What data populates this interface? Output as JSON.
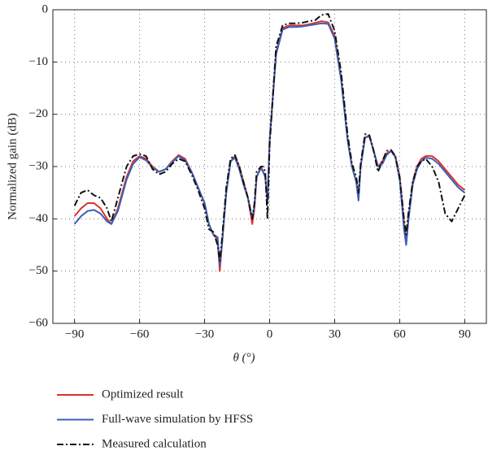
{
  "chart_data": {
    "type": "line",
    "xlabel": "θ (°)",
    "ylabel": "Normalized gain (dB)",
    "x": [
      -90,
      -87,
      -84,
      -81,
      -78,
      -75,
      -73,
      -70,
      -66,
      -63,
      -60,
      -57,
      -54,
      -51,
      -48,
      -45,
      -42,
      -39,
      -36,
      -33,
      -30,
      -28,
      -26,
      -24,
      -23,
      -22,
      -20,
      -18,
      -16,
      -14,
      -12,
      -10,
      -8,
      -7,
      -6,
      -4,
      -3,
      -2,
      -1,
      0,
      3,
      6,
      9,
      12,
      15,
      18,
      21,
      24,
      27,
      30,
      33,
      36,
      38,
      40,
      41,
      42,
      44,
      46,
      48,
      50,
      52,
      54,
      56,
      58,
      60,
      61,
      62,
      63,
      64,
      66,
      68,
      70,
      72,
      75,
      78,
      81,
      84,
      87,
      90
    ],
    "series": [
      {
        "name": "Optimized result",
        "color": "#e0302a",
        "linestyle": "solid",
        "values": [
          -39.5,
          -38,
          -37,
          -37,
          -38,
          -40,
          -41,
          -38,
          -32,
          -29,
          -28,
          -28.5,
          -30,
          -31,
          -30.5,
          -29,
          -27.8,
          -28.5,
          -31,
          -34,
          -37,
          -41,
          -43,
          -44,
          -50,
          -45,
          -35,
          -29,
          -28,
          -30,
          -33,
          -36,
          -41,
          -38,
          -32,
          -30,
          -31,
          -32,
          -37,
          -25,
          -8,
          -3.5,
          -3,
          -3,
          -3,
          -2.8,
          -2.5,
          -2.2,
          -2.4,
          -5,
          -13,
          -25,
          -30,
          -33,
          -36,
          -30,
          -24.5,
          -24,
          -27,
          -30,
          -29,
          -27.5,
          -27,
          -28,
          -32,
          -36,
          -41,
          -44.5,
          -40,
          -33,
          -30,
          -28.5,
          -28,
          -28,
          -29,
          -30.5,
          -32,
          -33.5,
          -34.5
        ]
      },
      {
        "name": "Full-wave simulation by HFSS",
        "color": "#3a5fb5",
        "linestyle": "solid",
        "values": [
          -41,
          -39.5,
          -38.5,
          -38.3,
          -39,
          -40.5,
          -41,
          -38.5,
          -32.5,
          -29.5,
          -28.2,
          -28.8,
          -30.2,
          -31,
          -30.5,
          -29.2,
          -28,
          -28.8,
          -31,
          -34,
          -37,
          -41,
          -43,
          -43.5,
          -49,
          -45,
          -35,
          -29,
          -28.3,
          -30.5,
          -33.5,
          -36,
          -40,
          -37.5,
          -32,
          -30.3,
          -31,
          -32,
          -37,
          -25,
          -8.5,
          -3.8,
          -3.3,
          -3.3,
          -3.2,
          -3,
          -2.8,
          -2.6,
          -2.7,
          -5.5,
          -13.5,
          -25,
          -30,
          -33,
          -36.5,
          -30,
          -24.5,
          -24.2,
          -27,
          -30,
          -29.5,
          -27.8,
          -27,
          -28.2,
          -32.5,
          -37,
          -42,
          -45,
          -40.5,
          -33.5,
          -30.5,
          -29,
          -28.3,
          -28.5,
          -29.5,
          -31,
          -32.5,
          -34,
          -35
        ]
      },
      {
        "name": "Measured calculation",
        "color": "#111111",
        "linestyle": "dashdot",
        "values": [
          -37.5,
          -35,
          -34.5,
          -35.5,
          -36,
          -38,
          -40.5,
          -36,
          -30,
          -28,
          -27.6,
          -28,
          -30.5,
          -31.5,
          -31,
          -29.5,
          -28.5,
          -29,
          -31.5,
          -34.5,
          -38,
          -42,
          -42.5,
          -45,
          -48,
          -44,
          -34,
          -28.5,
          -27.8,
          -30,
          -33,
          -36,
          -40,
          -37,
          -31,
          -30,
          -30,
          -31,
          -40,
          -26,
          -7,
          -3,
          -2.6,
          -2.6,
          -2.5,
          -2.2,
          -2,
          -1,
          -0.8,
          -4,
          -12,
          -24,
          -29.5,
          -32,
          -35,
          -29.5,
          -23.8,
          -24,
          -27,
          -31,
          -29,
          -27,
          -26.8,
          -28,
          -32,
          -36,
          -40,
          -43,
          -39,
          -33,
          -30,
          -29,
          -28.5,
          -30,
          -33,
          -39,
          -40.5,
          -38,
          -35.5
        ]
      }
    ],
    "xlim": [
      -100,
      100
    ],
    "xticks": [
      {
        "value": -90,
        "label": "−90"
      },
      {
        "value": -60,
        "label": "−60"
      },
      {
        "value": -30,
        "label": "−30"
      },
      0,
      30,
      60,
      90
    ],
    "ylim": [
      -60,
      0
    ],
    "yticks": [
      {
        "value": -60,
        "label": "−60"
      },
      {
        "value": -50,
        "label": "−50"
      },
      {
        "value": -40,
        "label": "−40"
      },
      {
        "value": -30,
        "label": "−30"
      },
      {
        "value": -20,
        "label": "−20"
      },
      {
        "value": -10,
        "label": "−10"
      },
      0
    ],
    "grid": true
  }
}
